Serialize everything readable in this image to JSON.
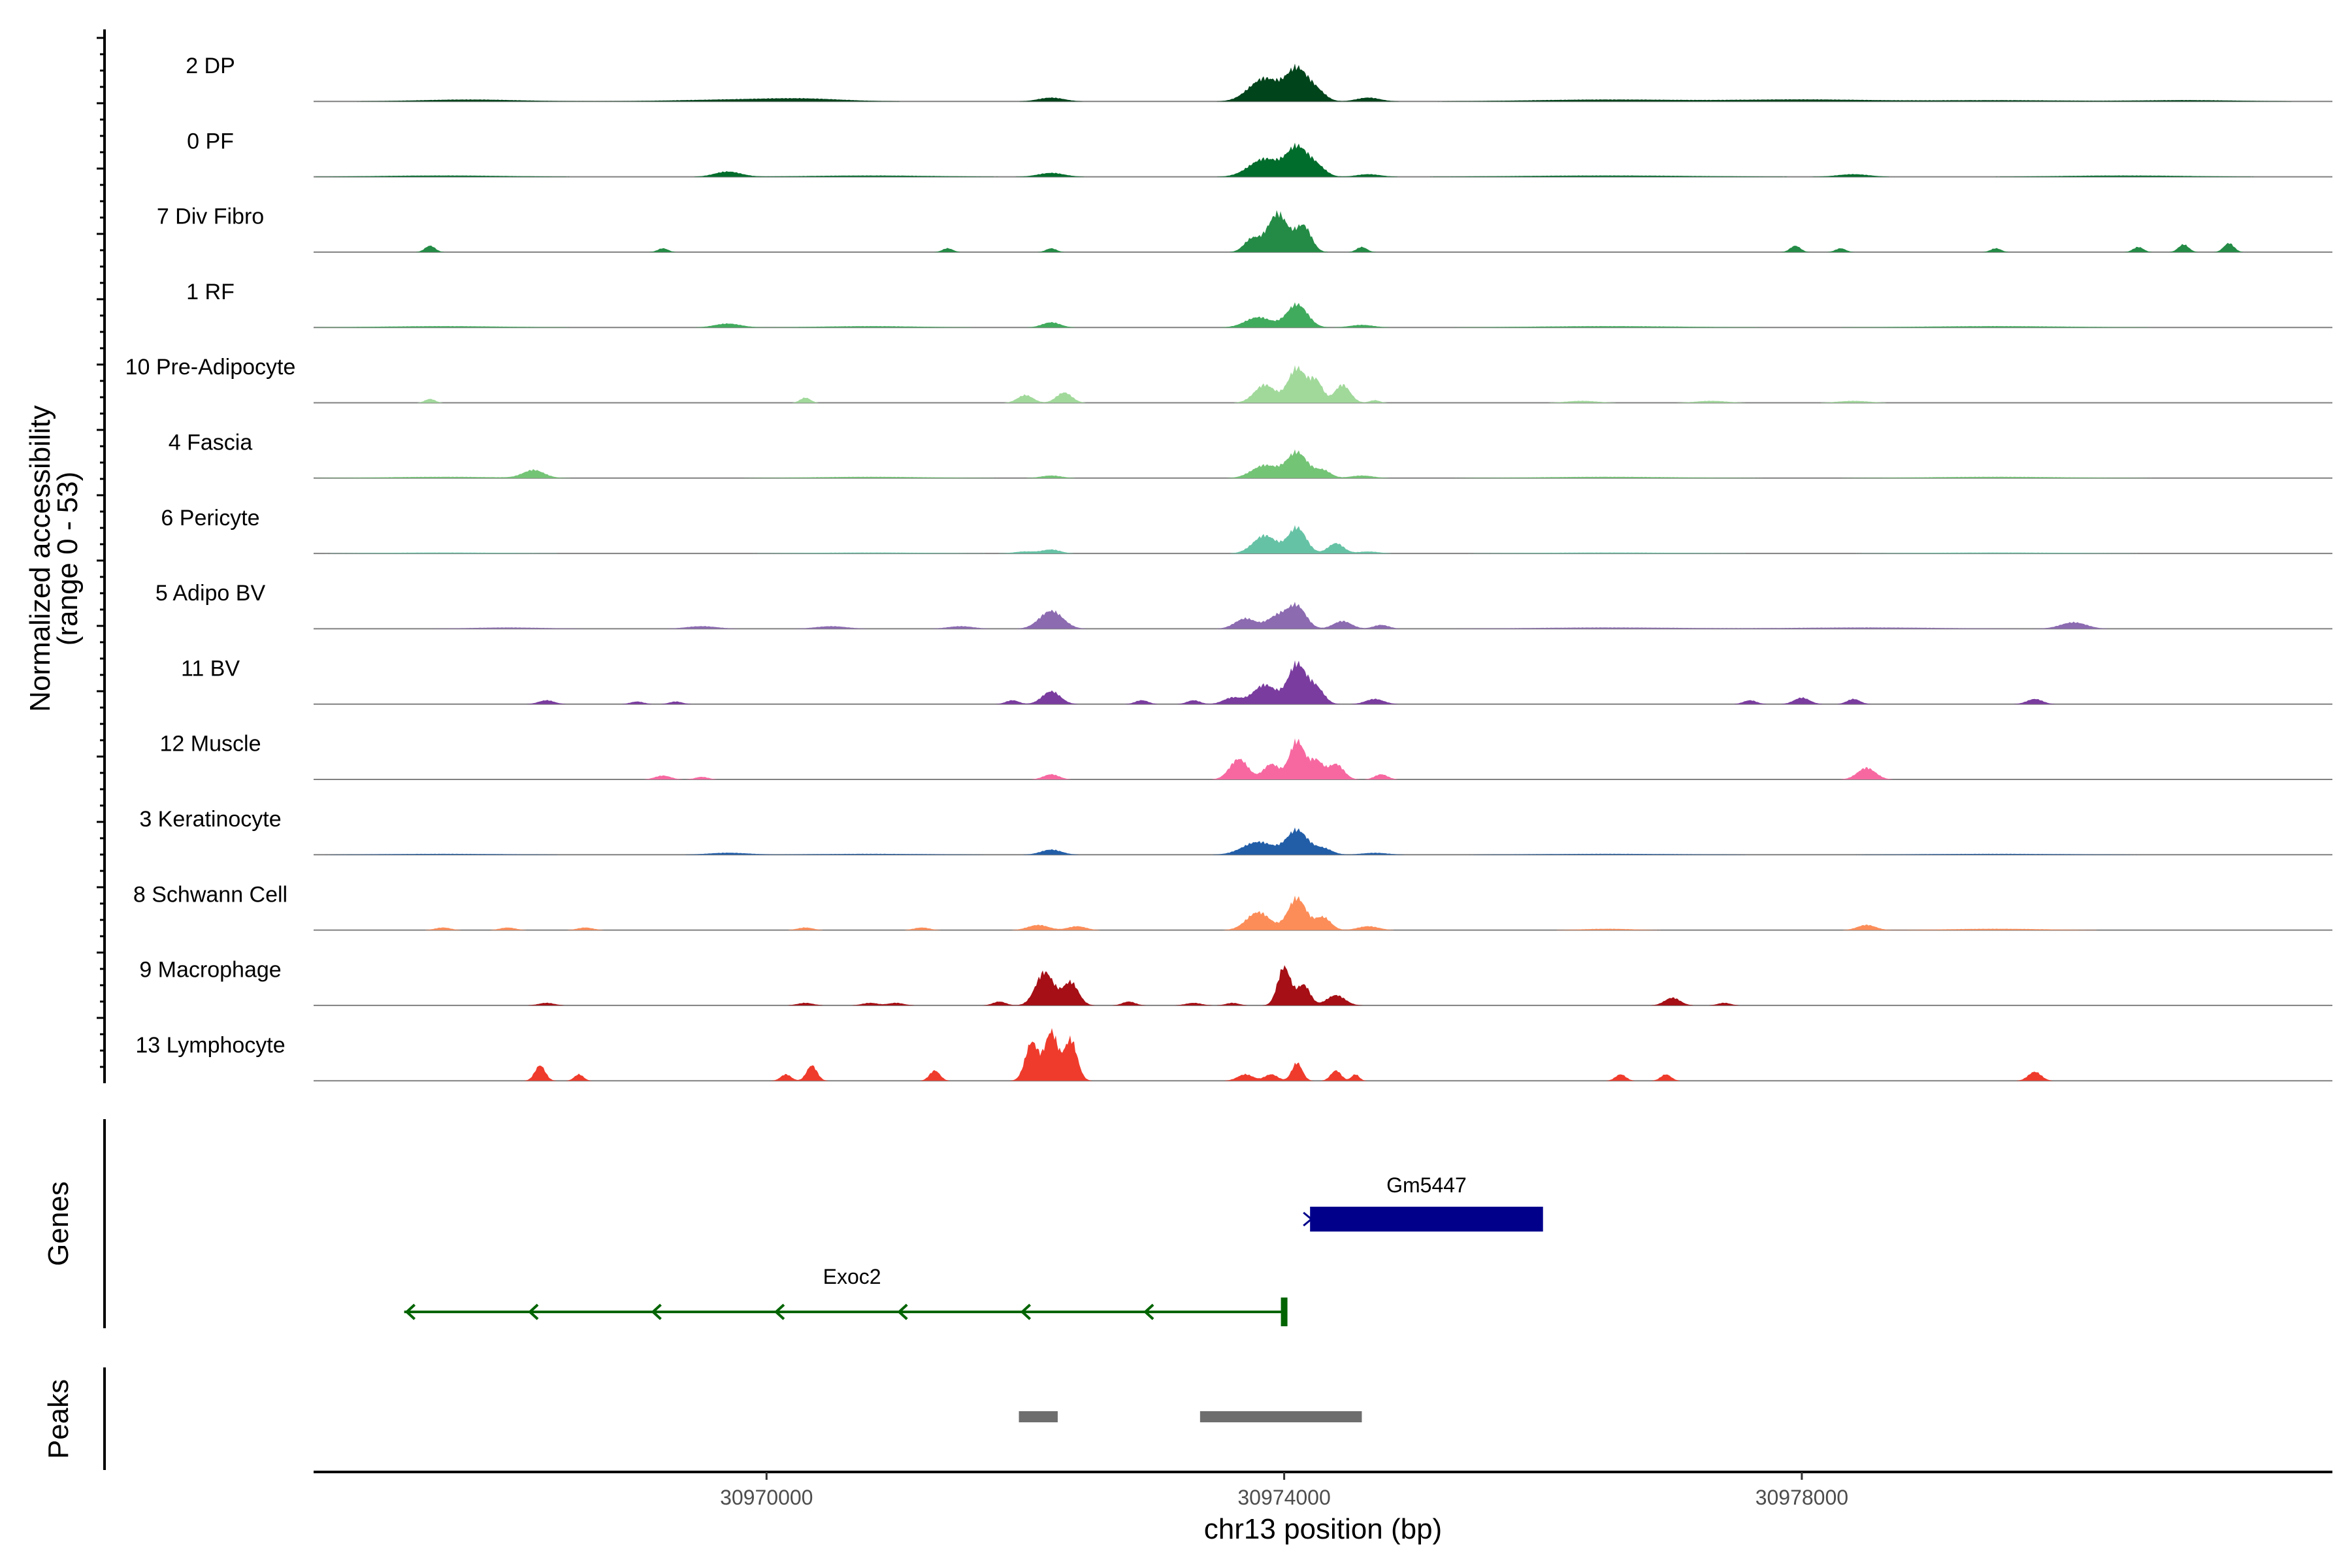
{
  "chart_data": {
    "type": "area",
    "chromosome": "chr13",
    "xlabel": "chr13 position (bp)",
    "xlim": [
      30966500,
      30982100
    ],
    "x_ticks": [
      30970000,
      30974000,
      30978000
    ],
    "ylabel_line1": "Normalized accessibility",
    "ylabel_line2": "(range 0 - 53)",
    "ylim": [
      0,
      53
    ],
    "grid": false,
    "series": [
      {
        "name": "2 DP",
        "color": "#00441b",
        "peaks": [
          [
            30973850,
            18,
            120
          ],
          [
            30974100,
            24,
            80
          ],
          [
            30974250,
            8,
            70
          ],
          [
            30972200,
            3,
            100
          ],
          [
            30974650,
            3,
            90
          ],
          [
            30967700,
            1.5,
            400
          ],
          [
            30969800,
            1.5,
            500
          ],
          [
            30970300,
            1.5,
            300
          ],
          [
            30976500,
            1.5,
            600
          ],
          [
            30978000,
            1.5,
            500
          ],
          [
            30979500,
            1,
            600
          ],
          [
            30981000,
            1,
            400
          ]
        ]
      },
      {
        "name": "0 PF",
        "color": "#006d2c",
        "peaks": [
          [
            30973850,
            14,
            120
          ],
          [
            30974100,
            22,
            80
          ],
          [
            30974250,
            8,
            70
          ],
          [
            30969700,
            4,
            100
          ],
          [
            30972200,
            3,
            100
          ],
          [
            30974650,
            2,
            90
          ],
          [
            30978400,
            2,
            120
          ],
          [
            30967500,
            1,
            500
          ],
          [
            30970800,
            1,
            500
          ],
          [
            30976500,
            1,
            700
          ],
          [
            30980500,
            1,
            500
          ]
        ]
      },
      {
        "name": "7 Div Fibro",
        "color": "#238b45",
        "peaks": [
          [
            30973950,
            30,
            80
          ],
          [
            30974150,
            20,
            60
          ],
          [
            30973750,
            10,
            60
          ],
          [
            30967400,
            5,
            40
          ],
          [
            30969200,
            3,
            40
          ],
          [
            30971400,
            3,
            40
          ],
          [
            30972200,
            3,
            40
          ],
          [
            30974600,
            4,
            40
          ],
          [
            30977950,
            5,
            40
          ],
          [
            30978300,
            3,
            40
          ],
          [
            30979500,
            3,
            40
          ],
          [
            30980600,
            4,
            40
          ],
          [
            30980950,
            6,
            40
          ],
          [
            30981300,
            7,
            40
          ]
        ]
      },
      {
        "name": "1 RF",
        "color": "#41ab5d",
        "peaks": [
          [
            30973800,
            8,
            100
          ],
          [
            30974100,
            18,
            80
          ],
          [
            30972200,
            4,
            70
          ],
          [
            30969700,
            3,
            100
          ],
          [
            30974600,
            2,
            90
          ],
          [
            30967500,
            1,
            500
          ],
          [
            30970800,
            1,
            400
          ],
          [
            30976500,
            1,
            600
          ],
          [
            30979500,
            1,
            600
          ]
        ]
      },
      {
        "name": "10 Pre-Adipocyte",
        "color": "#a1d99b",
        "peaks": [
          [
            30973850,
            14,
            80
          ],
          [
            30974100,
            27,
            70
          ],
          [
            30974250,
            16,
            50
          ],
          [
            30974450,
            14,
            60
          ],
          [
            30972000,
            6,
            60
          ],
          [
            30972300,
            8,
            60
          ],
          [
            30967400,
            3,
            40
          ],
          [
            30970300,
            4,
            40
          ],
          [
            30974700,
            2,
            40
          ],
          [
            30976300,
            1.5,
            120
          ],
          [
            30977300,
            1.5,
            120
          ],
          [
            30978400,
            1.5,
            120
          ]
        ]
      },
      {
        "name": "4 Fascia",
        "color": "#74c476",
        "peaks": [
          [
            30973850,
            10,
            100
          ],
          [
            30974100,
            20,
            80
          ],
          [
            30974300,
            6,
            60
          ],
          [
            30968200,
            6,
            80
          ],
          [
            30972200,
            2,
            80
          ],
          [
            30974600,
            2,
            90
          ],
          [
            30967500,
            1,
            500
          ],
          [
            30970800,
            1,
            500
          ],
          [
            30976500,
            1,
            600
          ],
          [
            30979500,
            1,
            600
          ]
        ]
      },
      {
        "name": "6 Pericyte",
        "color": "#66c2a5",
        "peaks": [
          [
            30973850,
            14,
            90
          ],
          [
            30974100,
            20,
            70
          ],
          [
            30974400,
            8,
            60
          ],
          [
            30972200,
            3,
            70
          ],
          [
            30972000,
            1.5,
            80
          ],
          [
            30974650,
            1.5,
            80
          ],
          [
            30967500,
            0.7,
            500
          ],
          [
            30970800,
            0.7,
            500
          ],
          [
            30976500,
            0.7,
            600
          ],
          [
            30979500,
            0.7,
            600
          ]
        ]
      },
      {
        "name": "5 Adipo BV",
        "color": "#8c6bb1",
        "peaks": [
          [
            30972200,
            14,
            90
          ],
          [
            30973700,
            8,
            80
          ],
          [
            30973950,
            10,
            80
          ],
          [
            30974100,
            17,
            70
          ],
          [
            30974450,
            6,
            70
          ],
          [
            30974750,
            3,
            60
          ],
          [
            30980100,
            5,
            100
          ],
          [
            30969500,
            2,
            120
          ],
          [
            30970500,
            2,
            120
          ],
          [
            30971500,
            2,
            100
          ],
          [
            30968000,
            1,
            300
          ],
          [
            30976500,
            1,
            600
          ],
          [
            30978500,
            1,
            600
          ]
        ]
      },
      {
        "name": "11 BV",
        "color": "#7a3c9f",
        "peaks": [
          [
            30973850,
            15,
            90
          ],
          [
            30974100,
            31,
            70
          ],
          [
            30974250,
            12,
            60
          ],
          [
            30972200,
            10,
            70
          ],
          [
            30971900,
            3,
            50
          ],
          [
            30968300,
            3,
            60
          ],
          [
            30969000,
            2,
            50
          ],
          [
            30969300,
            2,
            50
          ],
          [
            30972900,
            3,
            50
          ],
          [
            30973300,
            3,
            50
          ],
          [
            30973600,
            5,
            70
          ],
          [
            30974700,
            4,
            70
          ],
          [
            30977600,
            3,
            50
          ],
          [
            30978000,
            5,
            60
          ],
          [
            30978400,
            4,
            50
          ],
          [
            30979800,
            4,
            60
          ]
        ]
      },
      {
        "name": "12 Muscle",
        "color": "#f768a1",
        "peaks": [
          [
            30973650,
            16,
            70
          ],
          [
            30973900,
            12,
            60
          ],
          [
            30974100,
            30,
            60
          ],
          [
            30974250,
            14,
            50
          ],
          [
            30974400,
            12,
            60
          ],
          [
            30972200,
            4,
            60
          ],
          [
            30969200,
            3,
            60
          ],
          [
            30969500,
            2,
            50
          ],
          [
            30974750,
            4,
            50
          ],
          [
            30978500,
            9,
            70
          ]
        ]
      },
      {
        "name": "3 Keratinocyte",
        "color": "#225ea8",
        "peaks": [
          [
            30973800,
            10,
            120
          ],
          [
            30974100,
            19,
            80
          ],
          [
            30974300,
            5,
            70
          ],
          [
            30972200,
            4,
            80
          ],
          [
            30969700,
            1.5,
            150
          ],
          [
            30974700,
            1.5,
            100
          ],
          [
            30967500,
            0.7,
            500
          ],
          [
            30970800,
            0.7,
            500
          ],
          [
            30976500,
            0.7,
            600
          ],
          [
            30979500,
            0.7,
            600
          ]
        ]
      },
      {
        "name": "8 Schwann Cell",
        "color": "#fc8d59",
        "peaks": [
          [
            30973800,
            14,
            90
          ],
          [
            30974100,
            25,
            70
          ],
          [
            30974300,
            10,
            60
          ],
          [
            30972100,
            4,
            80
          ],
          [
            30972400,
            3,
            70
          ],
          [
            30974650,
            3,
            80
          ],
          [
            30967500,
            2,
            60
          ],
          [
            30968000,
            2,
            60
          ],
          [
            30968600,
            2,
            60
          ],
          [
            30970300,
            2,
            60
          ],
          [
            30971200,
            2,
            60
          ],
          [
            30978500,
            4,
            70
          ],
          [
            30976500,
            1,
            200
          ],
          [
            30979500,
            1,
            400
          ]
        ]
      },
      {
        "name": "9 Macrophage",
        "color": "#a50f15",
        "peaks": [
          [
            30972150,
            26,
            70
          ],
          [
            30972350,
            18,
            60
          ],
          [
            30974000,
            30,
            50
          ],
          [
            30974150,
            16,
            50
          ],
          [
            30974400,
            8,
            70
          ],
          [
            30971800,
            3,
            50
          ],
          [
            30968300,
            2,
            60
          ],
          [
            30970300,
            2,
            60
          ],
          [
            30970800,
            2,
            60
          ],
          [
            30971000,
            2,
            60
          ],
          [
            30972800,
            3,
            50
          ],
          [
            30973300,
            2,
            60
          ],
          [
            30973600,
            2,
            50
          ],
          [
            30977000,
            6,
            60
          ],
          [
            30977400,
            2,
            50
          ]
        ]
      },
      {
        "name": "13 Lymphocyte",
        "color": "#ef3b2c",
        "peaks": [
          [
            30972050,
            30,
            50
          ],
          [
            30972200,
            38,
            50
          ],
          [
            30972350,
            32,
            50
          ],
          [
            30968250,
            12,
            40
          ],
          [
            30968550,
            5,
            35
          ],
          [
            30970150,
            5,
            40
          ],
          [
            30970350,
            12,
            40
          ],
          [
            30971300,
            8,
            40
          ],
          [
            30973700,
            5,
            60
          ],
          [
            30973900,
            5,
            50
          ],
          [
            30974100,
            14,
            40
          ],
          [
            30974400,
            8,
            40
          ],
          [
            30974550,
            5,
            30
          ],
          [
            30976600,
            5,
            40
          ],
          [
            30976950,
            5,
            40
          ],
          [
            30979800,
            7,
            50
          ]
        ]
      }
    ],
    "genes": [
      {
        "name": "Gm5447",
        "start": 30974200,
        "end": 30976000,
        "strand": "+",
        "color": "#00008b"
      },
      {
        "name": "Exoc2",
        "start": 30967200,
        "end": 30974000,
        "strand": "-",
        "color": "#006400"
      }
    ],
    "peak_regions": [
      [
        30971950,
        30972250
      ],
      [
        30973350,
        30974600
      ]
    ],
    "peak_color": "#6e6e6e",
    "panel_labels": {
      "genes": "Genes",
      "peaks": "Peaks"
    }
  }
}
